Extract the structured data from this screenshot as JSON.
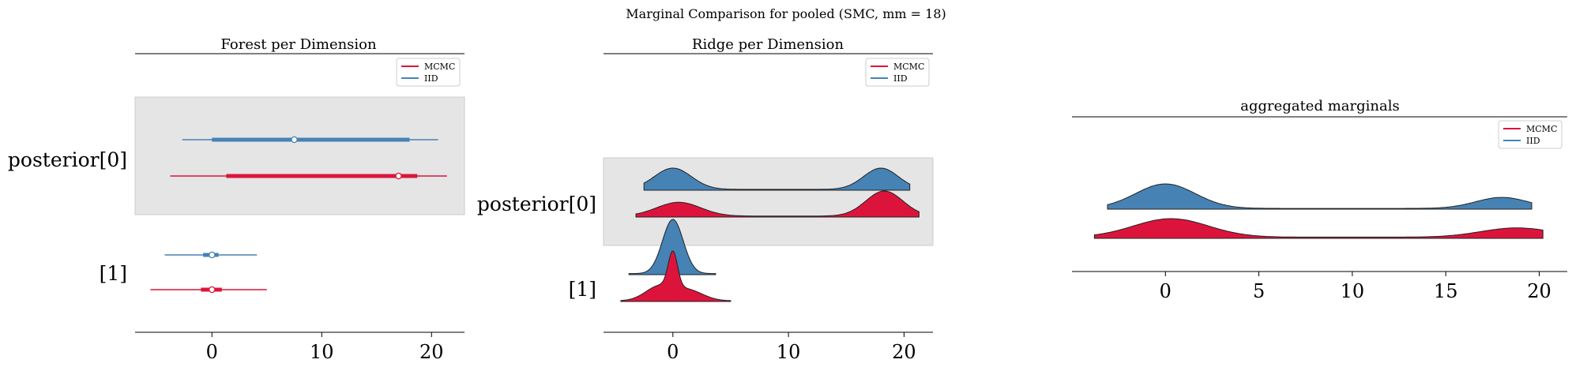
{
  "suptitle": "Marginal Comparison for pooled (SMC, mm = 18)",
  "colors": {
    "mcmc": "#dc143c",
    "iid": "#4682b4",
    "band": "#e5e5e5"
  },
  "chart_data": [
    {
      "type": "forest",
      "title": "Forest per Dimension",
      "legend": {
        "placement": "top-right",
        "entries": [
          "MCMC",
          "IID"
        ]
      },
      "y_labels": [
        "posterior[0]",
        "[1]"
      ],
      "xlim": [
        -7,
        23
      ],
      "xticks": [
        "0",
        "10",
        "20"
      ],
      "xtick_values": [
        0,
        10,
        20
      ],
      "series": [
        {
          "name": "IID",
          "rows": [
            {
              "median": 7.5,
              "hdi_50": [
                0,
                18
              ],
              "hdi_94": [
                -2.7,
                20.6
              ]
            },
            {
              "median": 0,
              "hdi_50": [
                -0.8,
                0.6
              ],
              "hdi_94": [
                -4.3,
                4.1
              ]
            }
          ]
        },
        {
          "name": "MCMC",
          "rows": [
            {
              "median": 17,
              "hdi_50": [
                1.3,
                18.7
              ],
              "hdi_94": [
                -3.8,
                21.4
              ]
            },
            {
              "median": 0,
              "hdi_50": [
                -1,
                0.9
              ],
              "hdi_94": [
                -5.6,
                5
              ]
            }
          ]
        }
      ]
    },
    {
      "type": "ridge",
      "title": "Ridge per Dimension",
      "legend": {
        "placement": "top-right",
        "entries": [
          "MCMC",
          "IID"
        ]
      },
      "y_labels": [
        "posterior[0]",
        "[1]"
      ],
      "xlim": [
        -6,
        22.5
      ],
      "xticks": [
        "0",
        "10",
        "20"
      ],
      "xtick_values": [
        0,
        10,
        20
      ],
      "series": [
        {
          "name": "IID",
          "rows": [
            {
              "range": [
                -2.5,
                20.5
              ],
              "peaks": [
                [
                  0,
                  1.6,
                  1.0
                ],
                [
                  18,
                  1.5,
                  1.0
                ]
              ],
              "floor": 0.04
            },
            {
              "range": [
                -3.8,
                3.7
              ],
              "peaks": [
                [
                  0,
                  0.9,
                  1.0
                ]
              ],
              "floor": 0.02
            }
          ]
        },
        {
          "name": "MCMC",
          "rows": [
            {
              "range": [
                -3.2,
                21.3
              ],
              "peaks": [
                [
                  0.5,
                  1.9,
                  0.55
                ],
                [
                  18.3,
                  1.6,
                  1.0
                ]
              ],
              "floor": 0.04
            },
            {
              "range": [
                -4.5,
                5
              ],
              "peaks": [
                [
                  0,
                  0.4,
                  1.0
                ],
                [
                  -1.2,
                  1.2,
                  0.4
                ],
                [
                  1.3,
                  1.3,
                  0.3
                ]
              ],
              "floor": 0.02
            }
          ]
        }
      ]
    },
    {
      "type": "density",
      "title": "aggregated marginals",
      "legend": {
        "placement": "top-right",
        "entries": [
          "MCMC",
          "IID"
        ]
      },
      "xlim": [
        -5,
        21.5
      ],
      "xticks": [
        "0",
        "5",
        "10",
        "15",
        "20"
      ],
      "xtick_values": [
        0,
        5,
        10,
        15,
        20
      ],
      "series": [
        {
          "name": "IID",
          "range": [
            -3.1,
            19.6
          ],
          "peaks": [
            [
              0,
              1.6,
              1.0
            ],
            [
              18,
              1.4,
              0.45
            ]
          ],
          "floor": 0.03
        },
        {
          "name": "MCMC",
          "range": [
            -3.8,
            20.2
          ],
          "peaks": [
            [
              0.3,
              2.0,
              0.9
            ],
            [
              18.8,
              1.9,
              0.45
            ]
          ],
          "floor": 0.06
        }
      ]
    }
  ]
}
